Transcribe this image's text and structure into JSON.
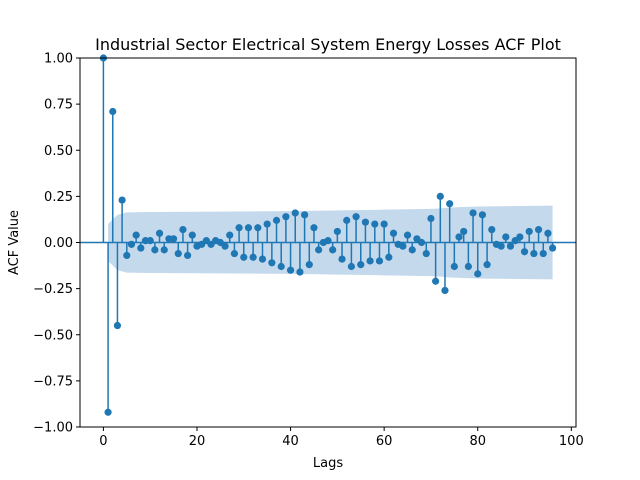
{
  "chart_data": {
    "type": "stem",
    "title": "Industrial Sector Electrical System Energy Losses ACF Plot",
    "xlabel": "Lags",
    "ylabel": "ACF Value",
    "xlim": [
      -5,
      101
    ],
    "ylim": [
      -1.0,
      1.0
    ],
    "xticks": [
      "0",
      "20",
      "40",
      "60",
      "80",
      "100"
    ],
    "yticks": [
      "−1.00",
      "−0.75",
      "−0.50",
      "−0.25",
      "0.00",
      "0.25",
      "0.50",
      "0.75",
      "1.00"
    ],
    "series": [
      {
        "values": [
          1.0,
          -0.92,
          0.71,
          -0.45,
          0.23,
          -0.07,
          -0.01,
          0.04,
          -0.03,
          0.01,
          0.01,
          -0.04,
          0.05,
          -0.04,
          0.02,
          0.02,
          -0.06,
          0.07,
          -0.07,
          0.04,
          -0.02,
          -0.01,
          0.01,
          -0.01,
          0.01,
          0.0,
          -0.02,
          0.04,
          -0.06,
          0.08,
          -0.08,
          0.08,
          -0.08,
          0.08,
          -0.09,
          0.1,
          -0.11,
          0.12,
          -0.13,
          0.14,
          -0.15,
          0.16,
          -0.16,
          0.15,
          -0.12,
          0.08,
          -0.04,
          0.0,
          0.01,
          -0.04,
          0.06,
          -0.09,
          0.12,
          -0.13,
          0.14,
          -0.12,
          0.11,
          -0.1,
          0.1,
          -0.1,
          0.1,
          -0.08,
          0.05,
          -0.01,
          -0.02,
          0.04,
          -0.04,
          0.02,
          0.0,
          -0.06,
          0.13,
          -0.21,
          0.25,
          -0.26,
          0.21,
          -0.13,
          0.03,
          0.06,
          -0.13,
          0.16,
          -0.17,
          0.15,
          -0.12,
          0.07,
          -0.01,
          -0.02,
          0.03,
          -0.02,
          0.01,
          0.03,
          -0.05,
          0.06,
          -0.06,
          0.07,
          -0.06,
          0.05,
          -0.03
        ]
      }
    ],
    "confidence_band": {
      "lags": [
        1,
        3,
        5,
        10,
        20,
        40,
        60,
        70,
        72,
        74,
        80,
        96
      ],
      "upper": [
        0.1,
        0.15,
        0.163,
        0.165,
        0.167,
        0.17,
        0.178,
        0.182,
        0.185,
        0.19,
        0.195,
        0.2
      ]
    },
    "colors": {
      "stem": "#1f77b4",
      "band": "#c5d9ec",
      "zero_line": "#1f77b4"
    },
    "grid": false,
    "legend": "none"
  }
}
